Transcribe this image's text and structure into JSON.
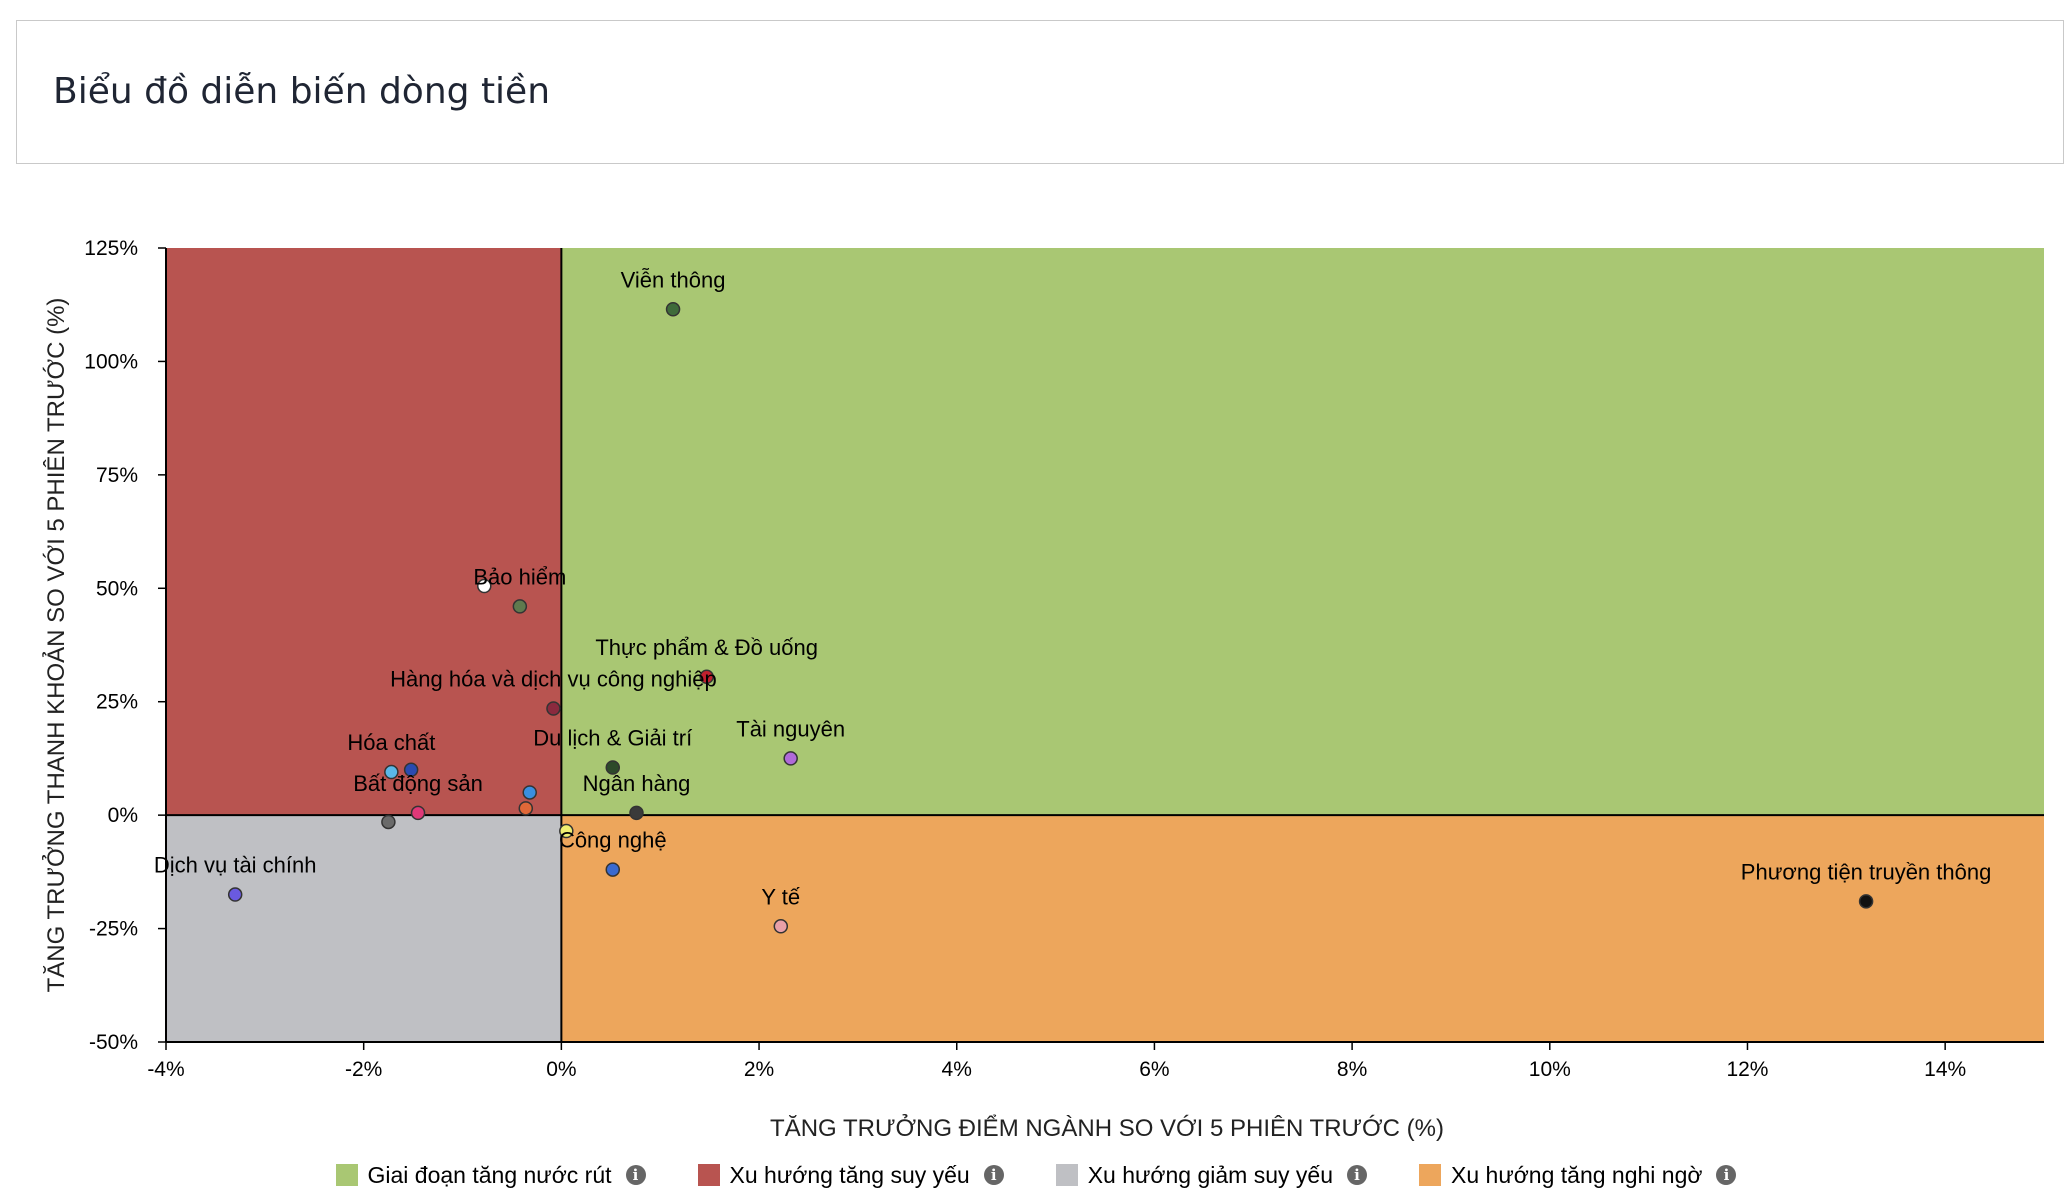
{
  "page": {
    "title": "Biểu đồ diễn biến dòng tiền"
  },
  "chart_data": {
    "type": "scatter",
    "title": "",
    "xlabel": "TĂNG TRƯỞNG ĐIỂM NGÀNH SO VỚI 5 PHIÊN TRƯỚC (%)",
    "ylabel": "TĂNG TRƯỞNG THANH KHOẢN SO VỚI 5 PHIÊN TRƯỚC (%)",
    "xlim": [
      -4,
      15
    ],
    "ylim": [
      -50,
      125
    ],
    "x_ticks": [
      -4,
      -2,
      0,
      2,
      4,
      6,
      8,
      10,
      12,
      14
    ],
    "x_tick_labels": [
      "-4%",
      "-2%",
      "0%",
      "2%",
      "4%",
      "6%",
      "8%",
      "10%",
      "12%",
      "14%"
    ],
    "y_ticks": [
      125,
      100,
      75,
      50,
      25,
      0,
      -25,
      -50
    ],
    "y_tick_labels": [
      "125%",
      "100%",
      "75%",
      "50%",
      "25%",
      "0%",
      "-25%",
      "-50%"
    ],
    "quadrants": [
      {
        "name": "Giai đoạn tăng nước rút",
        "x": [
          0,
          15
        ],
        "y": [
          0,
          125
        ],
        "color": "#a9c773"
      },
      {
        "name": "Xu hướng tăng suy yếu",
        "x": [
          -4,
          0
        ],
        "y": [
          0,
          125
        ],
        "color": "#b85450"
      },
      {
        "name": "Xu hướng giảm suy yếu",
        "x": [
          -4,
          0
        ],
        "y": [
          -50,
          0
        ],
        "color": "#bfc0c4"
      },
      {
        "name": "Xu hướng tăng nghi ngờ",
        "x": [
          0,
          15
        ],
        "y": [
          -50,
          0
        ],
        "color": "#eda65c"
      }
    ],
    "points": [
      {
        "label": "Viễn thông",
        "x": 1.13,
        "y": 111.5,
        "color": "#3f6b3a"
      },
      {
        "label": "",
        "x": -0.78,
        "y": 50.5,
        "color": "#ffffff"
      },
      {
        "label": "Bảo hiểm",
        "x": -0.42,
        "y": 46,
        "color": "#5f7a4e"
      },
      {
        "label": "Thực phẩm & Đồ uống",
        "x": 1.47,
        "y": 30.5,
        "color": "#c0202e"
      },
      {
        "label": "Hàng hóa và dịch vụ công nghiệp",
        "x": -0.08,
        "y": 23.5,
        "color": "#8a2a3e"
      },
      {
        "label": "Tài nguyên",
        "x": 2.32,
        "y": 12.5,
        "color": "#b06ad8"
      },
      {
        "label": "Du lịch & Giải trí",
        "x": 0.52,
        "y": 10.5,
        "color": "#2d4a2a"
      },
      {
        "label": "Hóa chất",
        "x": -1.72,
        "y": 9.5,
        "color": "#5ab8e8"
      },
      {
        "label": "",
        "x": -1.52,
        "y": 10,
        "color": "#2a4bb0"
      },
      {
        "label": "",
        "x": -0.32,
        "y": 5,
        "color": "#3a8fe0"
      },
      {
        "label": "",
        "x": -0.36,
        "y": 1.5,
        "color": "#e06838"
      },
      {
        "label": "Bất động sản",
        "x": -1.45,
        "y": 0.5,
        "color": "#e03878"
      },
      {
        "label": "Ngân hàng",
        "x": 0.76,
        "y": 0.5,
        "color": "#3a3a3a"
      },
      {
        "label": "",
        "x": -1.75,
        "y": -1.5,
        "color": "#6a6a6a"
      },
      {
        "label": "",
        "x": 0.05,
        "y": -3.5,
        "color": "#f0ee70"
      },
      {
        "label": "Công nghệ",
        "x": 0.52,
        "y": -12,
        "color": "#3a6ad0"
      },
      {
        "label": "Dịch vụ tài chính",
        "x": -3.3,
        "y": -17.5,
        "color": "#6a5ae0"
      },
      {
        "label": "Phương tiện truyền thông",
        "x": 13.2,
        "y": -19,
        "color": "#111111"
      },
      {
        "label": "Y tế",
        "x": 2.22,
        "y": -24.5,
        "color": "#e8a0a8"
      }
    ],
    "legend_position": "bottom"
  },
  "legend": {
    "items": [
      {
        "label": "Giai đoạn tăng nước rút",
        "color": "#a9c773",
        "icon": "info-icon"
      },
      {
        "label": "Xu hướng tăng suy yếu",
        "color": "#b85450",
        "icon": "info-icon"
      },
      {
        "label": "Xu hướng giảm suy yếu",
        "color": "#bfc0c4",
        "icon": "info-icon"
      },
      {
        "label": "Xu hướng tăng nghi ngờ",
        "color": "#eda65c",
        "icon": "info-icon"
      }
    ]
  }
}
